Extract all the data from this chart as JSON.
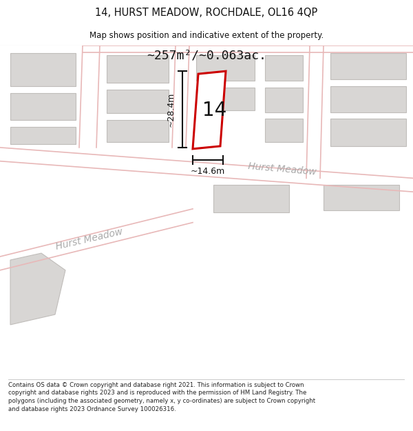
{
  "title_line1": "14, HURST MEADOW, ROCHDALE, OL16 4QP",
  "title_line2": "Map shows position and indicative extent of the property.",
  "area_text": "~257m²/~0.063ac.",
  "label_number": "14",
  "dim_vertical": "~28.4m",
  "dim_horizontal": "~14.6m",
  "street_name_upper": "Hurst Meadow",
  "street_name_lower": "Hurst Meadow",
  "footer_text": "Contains OS data © Crown copyright and database right 2021. This information is subject to Crown copyright and database rights 2023 and is reproduced with the permission of HM Land Registry. The polygons (including the associated geometry, namely x, y co-ordinates) are subject to Crown copyright and database rights 2023 Ordnance Survey 100026316.",
  "bg_color": "#ffffff",
  "map_bg": "#f0eeec",
  "building_color": "#d8d6d4",
  "building_edge": "#c0bdba",
  "road_line_color": "#e8b8b8",
  "property_outline_color": "#cc0000",
  "property_fill": "#ffffff",
  "dim_line_color": "#111111",
  "title_color": "#111111",
  "street_text_color": "#aaaaaa",
  "footer_color": "#222222"
}
